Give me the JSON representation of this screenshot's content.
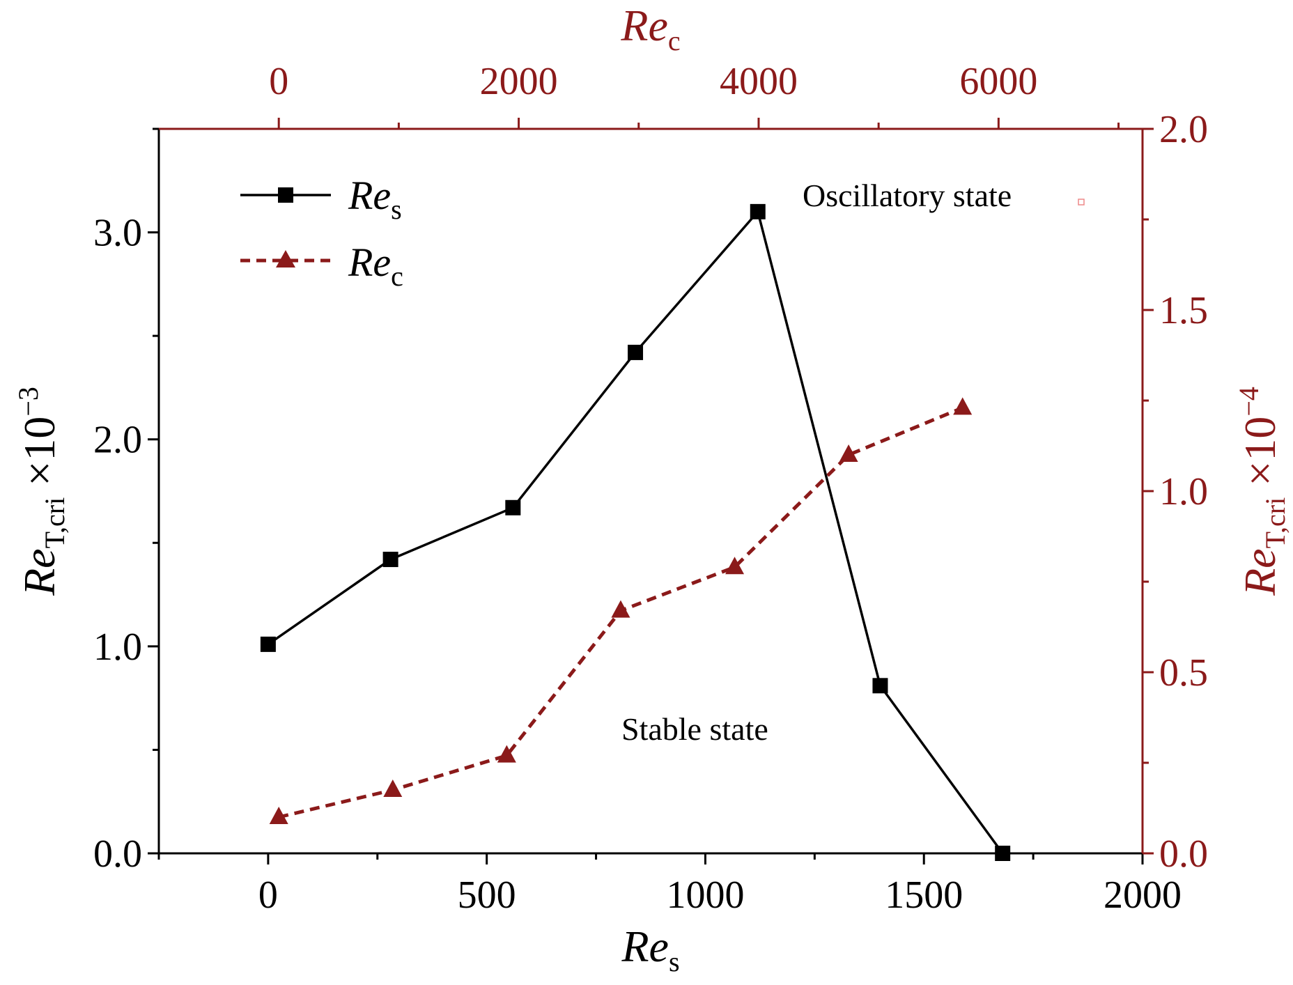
{
  "colors": {
    "primary": "#000000",
    "secondary": "#8b1a1a",
    "background": "#ffffff"
  },
  "chart_data": {
    "type": "line",
    "title": "",
    "bottom_axis": {
      "label": "Re",
      "label_sub": "s",
      "range": [
        -250,
        2000
      ],
      "ticks": [
        0,
        500,
        1000,
        1500,
        2000
      ],
      "tick_labels": [
        "0",
        "500",
        "1000",
        "1500",
        "2000"
      ]
    },
    "top_axis": {
      "label": "Re",
      "label_sub": "c",
      "range": [
        -1000,
        7200
      ],
      "ticks": [
        0,
        2000,
        4000,
        6000
      ],
      "tick_labels": [
        "0",
        "2000",
        "4000",
        "6000"
      ]
    },
    "left_axis": {
      "label": "Re",
      "label_sub": "T,cri",
      "label_suffix": " ×10",
      "label_sup": "−3",
      "range": [
        0,
        3.5
      ],
      "ticks": [
        0,
        1,
        2,
        3
      ],
      "tick_labels": [
        "0.0",
        "1.0",
        "2.0",
        "3.0"
      ]
    },
    "right_axis": {
      "label": "Re",
      "label_sub": "T,cri",
      "label_suffix": " ×10",
      "label_sup": "−4",
      "range": [
        0,
        2.0
      ],
      "ticks": [
        0,
        0.5,
        1.0,
        1.5,
        2.0
      ],
      "tick_labels": [
        "0.0",
        "0.5",
        "1.0",
        "1.5",
        "2.0"
      ]
    },
    "series": [
      {
        "name": "Re",
        "name_sub": "s",
        "axes": "bottom-left",
        "style": "solid",
        "marker": "square",
        "x": [
          0,
          280,
          560,
          840,
          1120,
          1400,
          1680
        ],
        "y": [
          1.01,
          1.42,
          1.67,
          2.42,
          3.1,
          0.81,
          0.0
        ]
      },
      {
        "name": "Re",
        "name_sub": "c",
        "axes": "top-right",
        "style": "dashed",
        "marker": "triangle",
        "x": [
          0,
          950,
          1900,
          2850,
          3800,
          4750,
          5700
        ],
        "y": [
          0.1,
          0.175,
          0.27,
          0.67,
          0.79,
          1.1,
          1.23
        ]
      }
    ],
    "annotations": [
      {
        "text": "Oscillatory state"
      },
      {
        "text": "Stable state"
      }
    ],
    "legend": "top-left"
  }
}
